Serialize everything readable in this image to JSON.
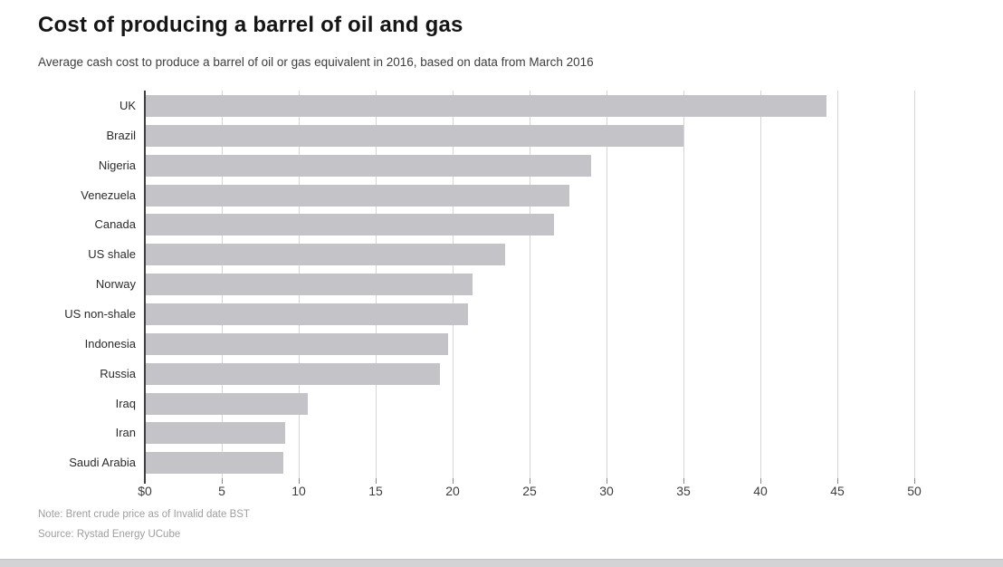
{
  "page": {
    "title": "Cost of producing a barrel of oil and gas",
    "subtitle": "Average cash cost to produce a barrel of oil or gas equivalent in 2016, based on data from March 2016",
    "note": "Note: Brent crude price as of Invalid date BST",
    "source": "Source: Rystad Energy UCube"
  },
  "chart_data": {
    "type": "bar",
    "orientation": "horizontal",
    "title": "Cost of producing a barrel of oil and gas",
    "subtitle": "Average cash cost to produce a barrel of oil or gas equivalent in 2016, based on data from March 2016",
    "categories": [
      "UK",
      "Brazil",
      "Nigeria",
      "Venezuela",
      "Canada",
      "US shale",
      "Norway",
      "US non-shale",
      "Indonesia",
      "Russia",
      "Iraq",
      "Iran",
      "Saudi Arabia"
    ],
    "values": [
      44.3,
      35.0,
      29.0,
      27.6,
      26.6,
      23.4,
      21.3,
      21.0,
      19.7,
      19.2,
      10.6,
      9.1,
      9.0
    ],
    "x_tick_labels": [
      "$0",
      "5",
      "10",
      "15",
      "20",
      "25",
      "30",
      "35",
      "40",
      "45",
      "50"
    ],
    "x_tick_values": [
      0,
      5,
      10,
      15,
      20,
      25,
      30,
      35,
      40,
      45,
      50
    ],
    "xlim": [
      0,
      50
    ],
    "xlabel": "",
    "ylabel": "",
    "grid": "vertical",
    "legend": "none",
    "bar_color": "#c4c4c8",
    "gridline_color": "#d5d5d5",
    "axis_color": "#3f3f3f"
  }
}
